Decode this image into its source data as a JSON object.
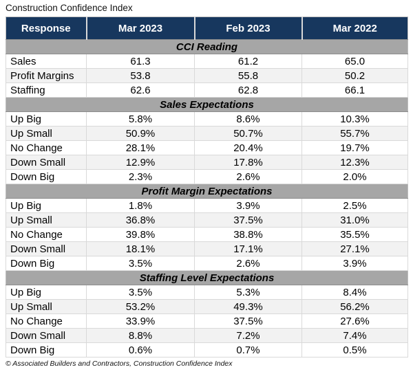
{
  "page": {
    "title": "Construction Confidence Index",
    "source_note": "© Associated Builders and Contractors, Construction Confidence Index"
  },
  "colors": {
    "header_bg": "#17375E",
    "header_text": "#ffffff",
    "section_bg": "#A6A6A6",
    "row_alt_bg": "#f2f2f2",
    "grid_border": "#d9d9d9"
  },
  "chart_data": {
    "type": "table",
    "title": "Construction Confidence Index",
    "columns": [
      "Response",
      "Mar 2023",
      "Feb 2023",
      "Mar 2022"
    ],
    "sections": [
      {
        "header": "CCI Reading",
        "rows": [
          [
            "Sales",
            "61.3",
            "61.2",
            "65.0"
          ],
          [
            "Profit Margins",
            "53.8",
            "55.8",
            "50.2"
          ],
          [
            "Staffing",
            "62.6",
            "62.8",
            "66.1"
          ]
        ]
      },
      {
        "header": "Sales Expectations",
        "rows": [
          [
            "Up Big",
            "5.8%",
            "8.6%",
            "10.3%"
          ],
          [
            "Up Small",
            "50.9%",
            "50.7%",
            "55.7%"
          ],
          [
            "No Change",
            "28.1%",
            "20.4%",
            "19.7%"
          ],
          [
            "Down Small",
            "12.9%",
            "17.8%",
            "12.3%"
          ],
          [
            "Down Big",
            "2.3%",
            "2.6%",
            "2.0%"
          ]
        ]
      },
      {
        "header": "Profit Margin Expectations",
        "rows": [
          [
            "Up Big",
            "1.8%",
            "3.9%",
            "2.5%"
          ],
          [
            "Up Small",
            "36.8%",
            "37.5%",
            "31.0%"
          ],
          [
            "No Change",
            "39.8%",
            "38.8%",
            "35.5%"
          ],
          [
            "Down Small",
            "18.1%",
            "17.1%",
            "27.1%"
          ],
          [
            "Down Big",
            "3.5%",
            "2.6%",
            "3.9%"
          ]
        ]
      },
      {
        "header": "Staffing Level Expectations",
        "rows": [
          [
            "Up Big",
            "3.5%",
            "5.3%",
            "8.4%"
          ],
          [
            "Up Small",
            "53.2%",
            "49.3%",
            "56.2%"
          ],
          [
            "No Change",
            "33.9%",
            "37.5%",
            "27.6%"
          ],
          [
            "Down Small",
            "8.8%",
            "7.2%",
            "7.4%"
          ],
          [
            "Down Big",
            "0.6%",
            "0.7%",
            "0.5%"
          ]
        ]
      }
    ],
    "source": "© Associated Builders and Contractors, Construction Confidence Index"
  }
}
